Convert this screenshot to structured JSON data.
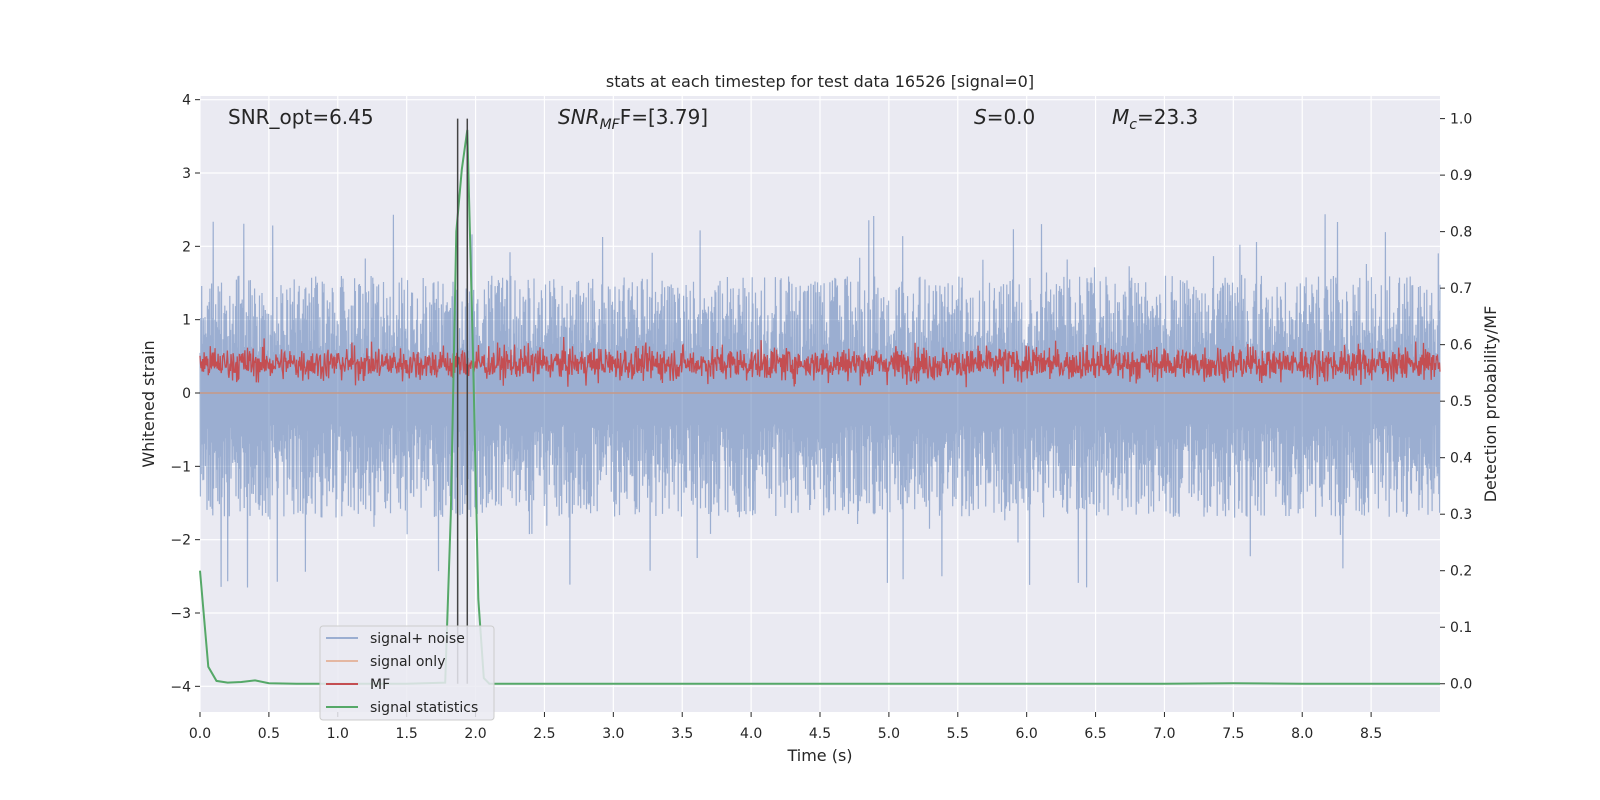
{
  "chart_data": {
    "type": "line",
    "title": "stats at each timestep for test data 16526 [signal=0]",
    "xlabel": "Time (s)",
    "ylabel": "Whitened strain",
    "ylabel_right": "Detection probability/MF",
    "xlim": [
      0,
      9.0
    ],
    "ylim": [
      -4.35,
      4.05
    ],
    "ylim_right": [
      -0.05,
      1.04
    ],
    "x_ticks": [
      0.0,
      0.5,
      1.0,
      1.5,
      2.0,
      2.5,
      3.0,
      3.5,
      4.0,
      4.5,
      5.0,
      5.5,
      6.0,
      6.5,
      7.0,
      7.5,
      8.0,
      8.5
    ],
    "x_tick_labels": [
      "0.0",
      "0.5",
      "1.0",
      "1.5",
      "2.0",
      "2.5",
      "3.0",
      "3.5",
      "4.0",
      "4.5",
      "5.0",
      "5.5",
      "6.0",
      "6.5",
      "7.0",
      "7.5",
      "8.0",
      "8.5"
    ],
    "y_ticks": [
      -4,
      -3,
      -2,
      -1,
      0,
      1,
      2,
      3,
      4
    ],
    "y_tick_labels": [
      "−4",
      "−3",
      "−2",
      "−1",
      "0",
      "1",
      "2",
      "3",
      "4"
    ],
    "y_ticks_right": [
      0.0,
      0.1,
      0.2,
      0.3,
      0.4,
      0.5,
      0.6,
      0.7,
      0.8,
      0.9,
      1.0
    ],
    "y_tick_labels_right": [
      "0.0",
      "0.1",
      "0.2",
      "0.3",
      "0.4",
      "0.5",
      "0.6",
      "0.7",
      "0.8",
      "0.9",
      "1.0"
    ],
    "grid": true,
    "legend_position": "lower-left",
    "annotations": {
      "snr_opt": "SNR_opt=6.45",
      "snr_mf_base": "SNR",
      "snr_mf_sub": "MF",
      "snr_mf_rest": "F=[3.79]",
      "s_var": "S",
      "s_rest": "=0.0",
      "mc_var": "M",
      "mc_sub": "c",
      "mc_rest": "=23.3"
    },
    "vertical_lines_x": [
      1.87,
      1.94
    ],
    "series": [
      {
        "name": "signal+ noise",
        "color": "#4c72b0",
        "kind": "noise",
        "band": [
          -1.7,
          1.6
        ],
        "range": [
          -4.0,
          3.4
        ]
      },
      {
        "name": "signal only",
        "color": "#dd8452",
        "kind": "flat",
        "value": 0.0
      },
      {
        "name": "MF",
        "color": "#c44e52",
        "kind": "mf",
        "band": [
          0.05,
          0.75
        ],
        "range": [
          0.0,
          0.95
        ]
      },
      {
        "name": "signal statistics",
        "color": "#55a868",
        "kind": "stat",
        "axis": "right",
        "x": [
          0.0,
          0.06,
          0.12,
          0.2,
          0.3,
          0.4,
          0.5,
          0.7,
          1.0,
          1.5,
          1.78,
          1.82,
          1.86,
          1.9,
          1.94,
          1.98,
          2.02,
          2.06,
          2.1,
          3.0,
          5.0,
          7.0,
          7.5,
          8.0,
          9.0
        ],
        "y": [
          0.2,
          0.03,
          0.005,
          0.002,
          0.003,
          0.006,
          0.001,
          0.0,
          0.0,
          0.0,
          0.002,
          0.3,
          0.8,
          0.91,
          0.98,
          0.6,
          0.15,
          0.01,
          0.0,
          0.0,
          0.0,
          0.0,
          0.001,
          0.0,
          0.0
        ]
      }
    ]
  }
}
